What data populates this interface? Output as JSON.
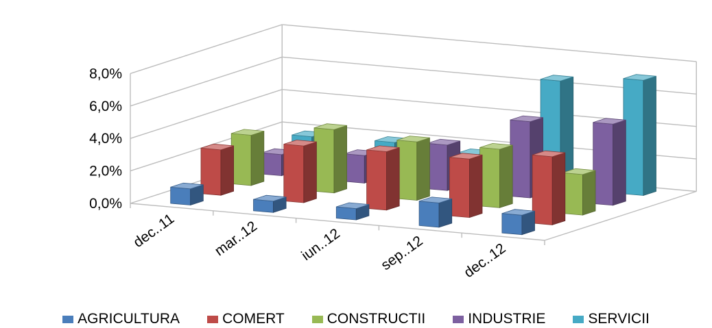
{
  "chart_data": {
    "type": "bar",
    "variant": "3d-clustered-columns",
    "categories": [
      "dec..11",
      "mar..12",
      "iun..12",
      "sep..12",
      "dec..12"
    ],
    "y_ticks": [
      "0,0%",
      "2,0%",
      "4,0%",
      "6,0%",
      "8,0%"
    ],
    "ylim": [
      0,
      0.08
    ],
    "grid": true,
    "legend_position": "bottom",
    "series": [
      {
        "name": "AGRICULTURA",
        "color": "#4a7ebb",
        "values": [
          0.01,
          0.007,
          0.007,
          0.015,
          0.012
        ]
      },
      {
        "name": "COMERT",
        "color": "#be4b48",
        "values": [
          0.028,
          0.035,
          0.036,
          0.036,
          0.042
        ]
      },
      {
        "name": "CONSTRUCTII",
        "color": "#98b954",
        "values": [
          0.031,
          0.039,
          0.036,
          0.036,
          0.025
        ]
      },
      {
        "name": "INDUSTRIE",
        "color": "#7d60a0",
        "values": [
          0.013,
          0.017,
          0.028,
          0.047,
          0.05
        ]
      },
      {
        "name": "SERVICII",
        "color": "#46aac5",
        "values": [
          0.018,
          0.019,
          0.016,
          0.066,
          0.071
        ]
      }
    ]
  }
}
